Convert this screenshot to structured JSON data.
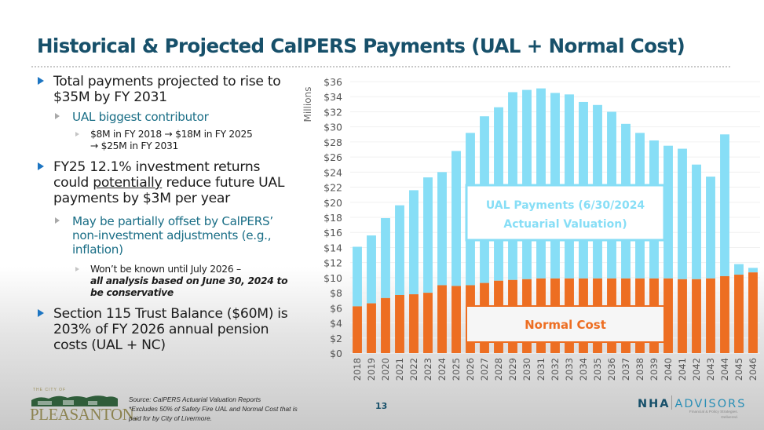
{
  "title": "Historical & Projected CalPERS Payments (UAL + Normal Cost)",
  "bullets": {
    "b1": "Total payments projected to rise to $35M by FY 2031",
    "b1_sub": "UAL biggest contributor",
    "b1_sub_sub_line1": "$8M in FY 2018 → $18M in FY 2025",
    "b1_sub_sub_line2": "→ $25M in FY 2031",
    "b2_pre": "FY25 12.1% investment returns could ",
    "b2_underlined": "potentially",
    "b2_post": " reduce future UAL payments by $3M per year",
    "b2_sub": "May be partially offset by CalPERS’ non-investment adjustments (e.g., inflation)",
    "b2_sub_sub_plain": "Won’t be known until July 2026 –",
    "b2_sub_sub_bold_italic": "all analysis based on June 30, 2024 to be conservative",
    "b3": "Section 115 Trust Balance ($60M) is 203% of FY 2026 annual pension costs (UAL + NC)"
  },
  "footer": {
    "logo_top": "THE CITY OF",
    "logo_name": "PLEASANTON.",
    "source_note": "Source: CalPERS Actuarial Valuation Reports",
    "exclusion_note_line1": "*Excludes 50% of Safety Fire UAL and Normal Cost that is",
    "exclusion_note_line2": "paid for by City of Livermore.",
    "page_number": "13",
    "nha_left": "NHA",
    "nha_right": "ADVISORS",
    "nha_tagline_line1": "Financial & Policy Strategies.",
    "nha_tagline_line2": "Delivered."
  },
  "colors": {
    "title": "#17506a",
    "ual": "#87def6",
    "normal_cost": "#ed6e22",
    "bullet_marker": "#1d75c2",
    "sub_bullet_text": "#1a6e86"
  },
  "chart_data": {
    "type": "bar",
    "stacked": true,
    "ylabel": "Millions",
    "ylim": [
      0,
      36
    ],
    "ytick_step": 2,
    "ytick_prefix": "$",
    "grid": true,
    "categories": [
      "2018",
      "2019",
      "2020",
      "2021",
      "2022",
      "2023",
      "2024",
      "2025",
      "2026",
      "2027",
      "2028",
      "2029",
      "2030",
      "2031",
      "2032",
      "2033",
      "2034",
      "2035",
      "2036",
      "2037",
      "2038",
      "2039",
      "2040",
      "2041",
      "2042",
      "2043",
      "2044",
      "2045",
      "2046"
    ],
    "series": [
      {
        "name": "Normal Cost",
        "values": [
          6.2,
          6.6,
          7.3,
          7.7,
          7.8,
          8.0,
          9.0,
          8.9,
          9.0,
          9.3,
          9.6,
          9.7,
          9.8,
          9.9,
          9.9,
          9.9,
          9.9,
          9.9,
          9.9,
          9.9,
          9.9,
          9.9,
          9.9,
          9.8,
          9.8,
          9.9,
          10.2,
          10.4,
          10.7
        ]
      },
      {
        "name": "UAL Payments (6/30/2024 Actuarial Valuation)",
        "values": [
          7.9,
          9.0,
          10.6,
          11.9,
          13.8,
          15.3,
          15.0,
          17.9,
          20.2,
          22.1,
          23.0,
          24.9,
          25.1,
          25.2,
          24.6,
          24.4,
          23.4,
          23.0,
          22.1,
          20.5,
          19.3,
          18.3,
          17.6,
          17.3,
          15.2,
          13.5,
          18.8,
          1.4,
          0.6
        ]
      }
    ],
    "annotations": {
      "ual_label_line1": "UAL Payments (6/30/2024",
      "ual_label_line2": "Actuarial Valuation)",
      "nc_label": "Normal Cost"
    }
  }
}
